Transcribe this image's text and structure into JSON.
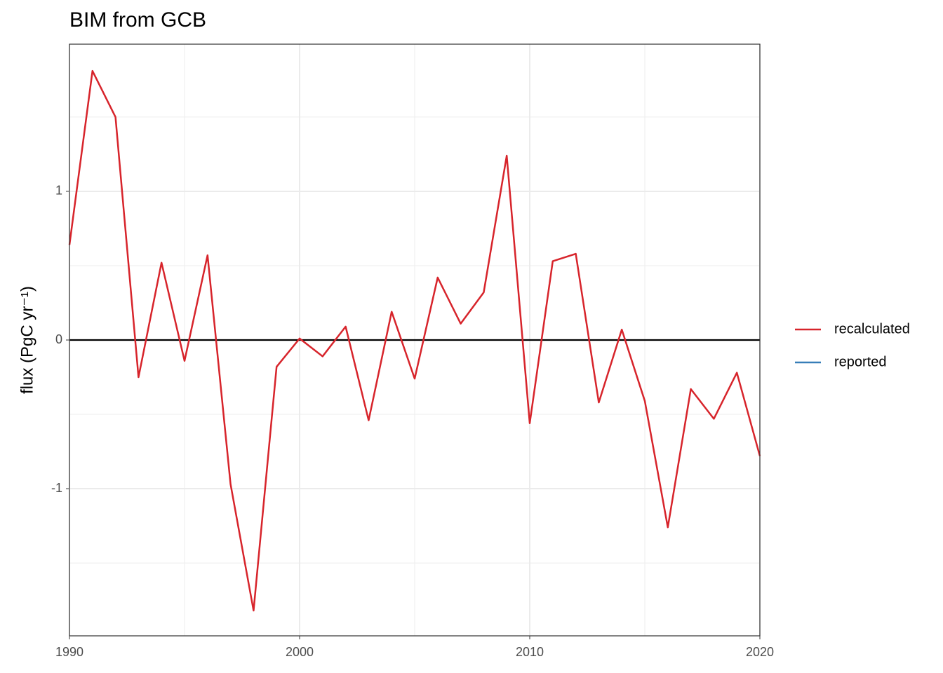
{
  "chart_data": {
    "type": "line",
    "title": "BIM from GCB",
    "y_label": "flux (PgC yr⁻¹)",
    "x": [
      1990,
      1991,
      1992,
      1993,
      1994,
      1995,
      1996,
      1997,
      1998,
      1999,
      2000,
      2001,
      2002,
      2003,
      2004,
      2005,
      2006,
      2007,
      2008,
      2009,
      2010,
      2011,
      2012,
      2013,
      2014,
      2015,
      2016,
      2017,
      2018,
      2019,
      2020
    ],
    "series": [
      {
        "name": "recalculated",
        "color": "#d7242b",
        "values": [
          0.64,
          1.81,
          1.5,
          -0.25,
          0.52,
          -0.14,
          0.57,
          -0.97,
          -1.82,
          -0.18,
          0.01,
          -0.11,
          0.09,
          -0.54,
          0.19,
          -0.26,
          0.42,
          0.11,
          0.32,
          1.24,
          -0.56,
          0.53,
          0.58,
          -0.42,
          0.07,
          -0.41,
          -1.26,
          -0.33,
          -0.53,
          -0.22,
          -0.78
        ]
      },
      {
        "name": "reported",
        "color": "#377eb8",
        "values": [
          null,
          null,
          null,
          null,
          null,
          null,
          null,
          null,
          null,
          null,
          null,
          null,
          null,
          null,
          null,
          null,
          null,
          null,
          null,
          null,
          null,
          null,
          null,
          null,
          null,
          null,
          null,
          null,
          null,
          null,
          null
        ]
      }
    ],
    "xlim": [
      1990,
      2020
    ],
    "ylim": [
      -1.99,
      1.99
    ],
    "xticks": [
      1990,
      2000,
      2010,
      2020
    ],
    "yticks": [
      -1,
      0,
      1
    ],
    "xminor": [
      1995,
      2005,
      2015
    ],
    "yminor": [
      -1.5,
      -0.5,
      0.5,
      1.5
    ],
    "hline": 0,
    "grid": true,
    "legend": "right"
  }
}
